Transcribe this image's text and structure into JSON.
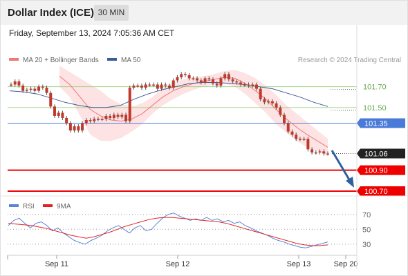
{
  "header": {
    "title": "Dollar Index (ICE)",
    "interval": "30 MIN"
  },
  "datetime": "Friday, September 13, 2024 7:05:36 AM CET",
  "colors": {
    "ma20": "#ee7777",
    "ma50": "#3d5a99",
    "bollinger_fill": "#fde0e0",
    "candle": "#c0392b",
    "support_resistance_green": "#a5d187",
    "pivot_blue": "#4a7bd8",
    "target_red": "#ee0000",
    "arrow": "#2e5fa0",
    "rsi": "#5b84d6",
    "rsi_ma": "#e22222"
  },
  "chart_data": [
    {
      "type": "line",
      "title": "",
      "legend": [
        {
          "name": "MA 20 + Bollinger Bands",
          "color": "#ee7777"
        },
        {
          "name": "MA 50",
          "color": "#3d5a99"
        }
      ],
      "watermark": "Research © 2024 Trading Central",
      "x_ticks": [
        "Sep 11",
        "Sep 12",
        "Sep 13",
        "Sep 20"
      ],
      "ylim": [
        100.66,
        102.12
      ],
      "levels": [
        {
          "value": 101.7,
          "label": "101.70",
          "kind": "resistance"
        },
        {
          "value": 101.5,
          "label": "101.50",
          "kind": "resistance"
        },
        {
          "value": 101.35,
          "label": "101.35",
          "kind": "pivot"
        },
        {
          "value": 101.06,
          "label": "101.06",
          "kind": "last"
        },
        {
          "value": 100.9,
          "label": "100.90",
          "kind": "target"
        },
        {
          "value": 100.7,
          "label": "100.70",
          "kind": "target"
        }
      ],
      "series": [
        {
          "name": "Price",
          "values": [
            101.72,
            101.75,
            101.71,
            101.66,
            101.67,
            101.68,
            101.66,
            101.7,
            101.69,
            101.64,
            101.51,
            101.42,
            101.45,
            101.4,
            101.35,
            101.28,
            101.32,
            101.28,
            101.35,
            101.38,
            101.37,
            101.39,
            101.39,
            101.39,
            101.42,
            101.4,
            101.43,
            101.41,
            101.43,
            101.37,
            101.69,
            101.71,
            101.71,
            101.69,
            101.72,
            101.72,
            101.72,
            101.68,
            101.72,
            101.71,
            101.69,
            101.76,
            101.79,
            101.82,
            101.81,
            101.78,
            101.78,
            101.76,
            101.74,
            101.78,
            101.77,
            101.73,
            101.71,
            101.78,
            101.82,
            101.77,
            101.75,
            101.74,
            101.72,
            101.72,
            101.71,
            101.72,
            101.68,
            101.58,
            101.55,
            101.56,
            101.54,
            101.5,
            101.43,
            101.35,
            101.27,
            101.24,
            101.2,
            101.2,
            101.2,
            101.1,
            101.07,
            101.07,
            101.08,
            101.06,
            101.06
          ]
        },
        {
          "name": "MA 20",
          "values": [
            101.8,
            101.72,
            101.6,
            101.48,
            101.42,
            101.38,
            101.37,
            101.39,
            101.44,
            101.52,
            101.6,
            101.66,
            101.7,
            101.73,
            101.75,
            101.77,
            101.79,
            101.78,
            101.73,
            101.66,
            101.58,
            101.48,
            101.39,
            101.31,
            101.24,
            101.18,
            101.12
          ]
        },
        {
          "name": "MA 50",
          "values": [
            101.66,
            101.65,
            101.63,
            101.59,
            101.55,
            101.52,
            101.5,
            101.5,
            101.52,
            101.58,
            101.63,
            101.67,
            101.7,
            101.73,
            101.74,
            101.74,
            101.73,
            101.72,
            101.7,
            101.68,
            101.64,
            101.6,
            101.55,
            101.51
          ]
        }
      ]
    },
    {
      "type": "line",
      "title": "",
      "legend": [
        {
          "name": "RSI",
          "color": "#5b84d6"
        },
        {
          "name": "9MA",
          "color": "#e22222"
        }
      ],
      "y_ticks": [
        "70",
        "50",
        "30"
      ],
      "ylim": [
        15,
        80
      ],
      "series": [
        {
          "name": "RSI",
          "values": [
            55,
            62,
            65,
            58,
            52,
            58,
            60,
            55,
            48,
            52,
            45,
            40,
            35,
            32,
            30,
            35,
            38,
            42,
            48,
            52,
            55,
            50,
            45,
            52,
            55,
            48,
            50,
            58,
            65,
            70,
            72,
            68,
            65,
            62,
            64,
            62,
            66,
            62,
            64,
            60,
            62,
            58,
            60,
            55,
            52,
            48,
            45,
            42,
            38,
            35,
            33,
            30,
            28,
            26,
            25,
            27,
            29,
            31,
            33
          ]
        },
        {
          "name": "9MA",
          "values": [
            58,
            57,
            56,
            55,
            53,
            51,
            48,
            45,
            42,
            40,
            38,
            40,
            43,
            46,
            50,
            54,
            57,
            60,
            63,
            65,
            66,
            66,
            65,
            64,
            63,
            62,
            61,
            60,
            58,
            55,
            52,
            49,
            46,
            43,
            40,
            37,
            34,
            31,
            29,
            28,
            28,
            29
          ]
        }
      ]
    }
  ]
}
